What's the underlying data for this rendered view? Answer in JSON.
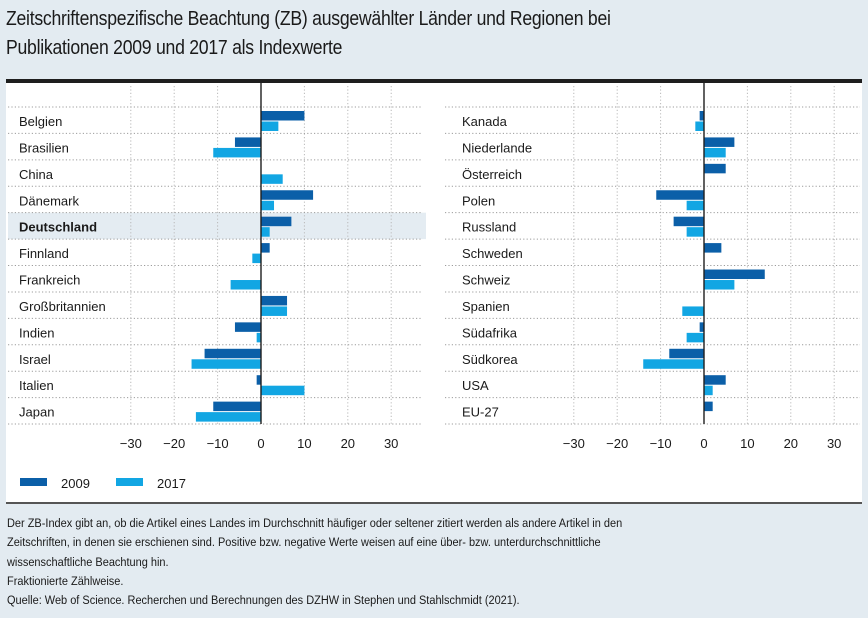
{
  "title_lines": [
    "Zeitschriftenspezifische Beachtung (ZB) ausgewählter Länder und Regionen bei",
    "Publikationen 2009 und 2017 als Indexwerte"
  ],
  "colors": {
    "series_2009": "#0b5fa8",
    "series_2017": "#12a6e3",
    "highlight_row": "#e4ecf2",
    "background": "#e3ebf1"
  },
  "chart_data": [
    {
      "type": "bar",
      "orientation": "horizontal",
      "panel": "left",
      "categories": [
        "Belgien",
        "Brasilien",
        "China",
        "Dänemark",
        "Deutschland",
        "Finnland",
        "Frankreich",
        "Großbritannien",
        "Indien",
        "Israel",
        "Italien",
        "Japan"
      ],
      "highlighted_category": "Deutschland",
      "series": [
        {
          "name": "2009",
          "values": [
            10,
            -6,
            0,
            12,
            7,
            2,
            0,
            6,
            -6,
            -13,
            -1,
            -11
          ]
        },
        {
          "name": "2017",
          "values": [
            4,
            -11,
            5,
            3,
            2,
            -2,
            -7,
            6,
            -1,
            -16,
            10,
            -15
          ]
        }
      ],
      "xlim": [
        -35,
        37
      ],
      "xticks": [
        -30,
        -20,
        -10,
        0,
        10,
        20,
        30
      ],
      "grid": true,
      "xlabel": "",
      "ylabel": ""
    },
    {
      "type": "bar",
      "orientation": "horizontal",
      "panel": "right",
      "categories": [
        "Kanada",
        "Niederlande",
        "Österreich",
        "Polen",
        "Russland",
        "Schweden",
        "Schweiz",
        "Spanien",
        "Südafrika",
        "Südkorea",
        "USA",
        "EU-27"
      ],
      "series": [
        {
          "name": "2009",
          "values": [
            -1,
            7,
            5,
            -11,
            -7,
            4,
            14,
            0,
            -1,
            -8,
            5,
            2
          ]
        },
        {
          "name": "2017",
          "values": [
            -2,
            5,
            0,
            -4,
            -4,
            0,
            7,
            -5,
            -4,
            -14,
            2,
            0
          ]
        }
      ],
      "xlim": [
        -35,
        37
      ],
      "xticks": [
        -30,
        -20,
        -10,
        0,
        10,
        20,
        30
      ],
      "grid": true,
      "xlabel": "",
      "ylabel": ""
    }
  ],
  "legend": [
    {
      "label": "2009",
      "color": "#0b5fa8"
    },
    {
      "label": "2017",
      "color": "#12a6e3"
    }
  ],
  "legend_position": "bottom-left",
  "footer_lines": [
    "Der ZB-Index gibt an, ob die Artikel eines Landes im Durchschnitt häufiger oder seltener zitiert werden als andere Artikel in den",
    "Zeitschriften, in denen sie erschienen sind. Positive bzw. negative Werte weisen auf eine über- bzw. unterdurchschnittliche",
    "wissenschaftliche Beachtung hin.",
    "Fraktionierte Zählweise.",
    "Quelle: Web of Science. Recherchen und Berechnungen des DZHW in Stephen und Stahlschmidt (2021)."
  ]
}
